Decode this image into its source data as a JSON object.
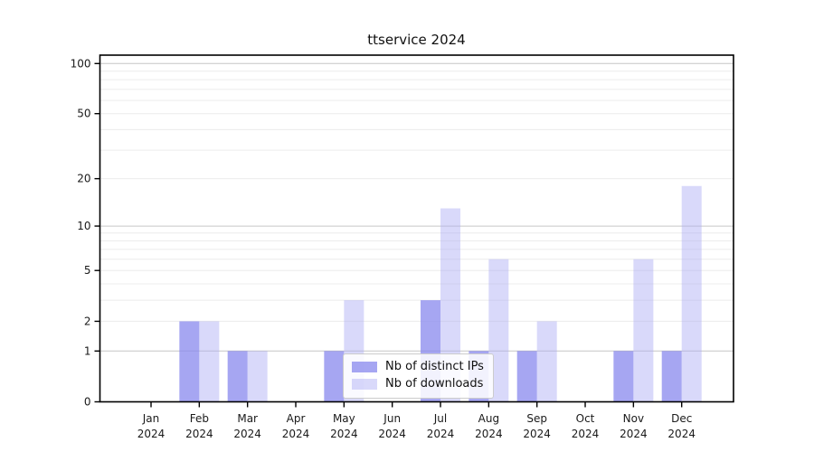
{
  "chart_data": {
    "type": "bar",
    "title": "ttservice 2024",
    "categories": [
      "Jan",
      "Feb",
      "Mar",
      "Apr",
      "May",
      "Jun",
      "Jul",
      "Aug",
      "Sep",
      "Oct",
      "Nov",
      "Dec"
    ],
    "year_label": "2024",
    "series": [
      {
        "key": "distinct-ips",
        "name": "Nb of distinct IPs",
        "color": "#8888ee",
        "fill_opacity": 0.75,
        "values": [
          0,
          2,
          1,
          0,
          1,
          0,
          3,
          1,
          1,
          0,
          1,
          1
        ]
      },
      {
        "key": "downloads",
        "name": "Nb of downloads",
        "color": "#aaaaf5",
        "fill_opacity": 0.45,
        "values": [
          0,
          2,
          1,
          0,
          3,
          0,
          13,
          6,
          2,
          0,
          6,
          18
        ]
      }
    ],
    "xlabel": "",
    "ylabel": "",
    "yscale": "log(1+y)",
    "ylim": [
      0,
      110
    ],
    "yticks": [
      0,
      1,
      2,
      5,
      10,
      20,
      50,
      100
    ],
    "grid": {
      "major": [
        1,
        10,
        100
      ],
      "minor": [
        2,
        3,
        4,
        5,
        6,
        7,
        8,
        9,
        20,
        30,
        40,
        50,
        60,
        70,
        80,
        90
      ]
    },
    "legend_position": "lower center",
    "colors": {
      "axis": "#000000",
      "grid_major": "#c6c6c6",
      "grid_minor": "#ececec",
      "text": "#1a1a1a",
      "background": "#ffffff"
    }
  }
}
